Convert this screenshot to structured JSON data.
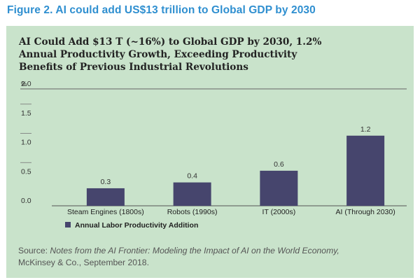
{
  "figure_caption": "Figure 2. AI could add US$13 trillion to Global GDP by 2030",
  "source": {
    "prefix": "Source: ",
    "title": "Notes from the AI Frontier: Modeling the Impact of AI on the World Economy,",
    "suffix": "McKinsey & Co., September 2018."
  },
  "colors": {
    "panel_background": "#c9e3cb",
    "bar": "#46456d",
    "caption": "#2f8fd0"
  },
  "chart_data": {
    "type": "bar",
    "title": "AI Could Add $13 T (~16%) to Global GDP by 2030, 1.2% Annual Productivity Growth, Exceeding Productivity Benefits of Previous Industrial Revolutions",
    "title_lines": [
      "AI Could Add $13 T (~16%) to Global GDP by 2030, 1.2%",
      "Annual Productivity Growth, Exceeding Productivity",
      "Benefits of Previous Industrial Revolutions"
    ],
    "ylabel": "%",
    "xlabel": "",
    "categories": [
      "Steam Engines (1800s)",
      "Robots (1990s)",
      "IT (2000s)",
      "AI (Through 2030)"
    ],
    "series": [
      {
        "name": "Annual Labor Productivity Addition",
        "values": [
          0.3,
          0.4,
          0.6,
          1.2
        ]
      }
    ],
    "data_labels": [
      "0.3",
      "0.4",
      "0.6",
      "1.2"
    ],
    "yticks": [
      "0.0",
      "0.5",
      "1.0",
      "1.5",
      "2.0"
    ],
    "ylim": [
      0,
      2.0
    ],
    "legend": "bottom-left"
  }
}
